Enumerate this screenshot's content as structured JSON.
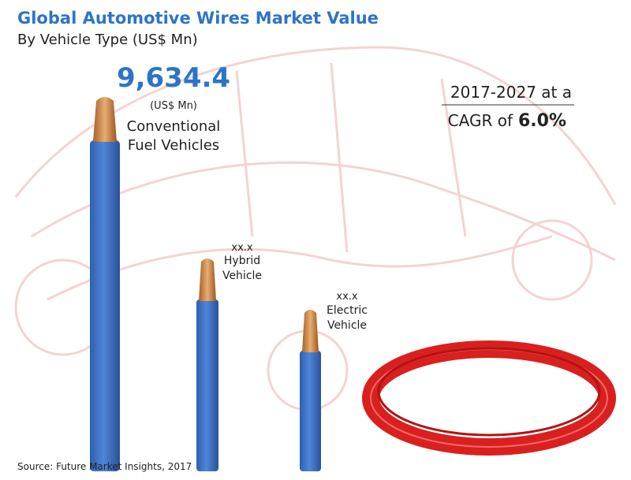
{
  "header": {
    "title": "Global Automotive Wires Market Value",
    "subtitle": "By Vehicle Type (US$ Mn)"
  },
  "items": [
    {
      "value": "9,634.4",
      "unit": "(US$ Mn)",
      "label": [
        "Conventional",
        "Fuel Vehicles"
      ]
    },
    {
      "value": "xx.x",
      "label": [
        "Hybrid",
        "Vehicle"
      ]
    },
    {
      "value": "xx.x",
      "label": [
        "Electric",
        "Vehicle"
      ]
    }
  ],
  "cagr": {
    "period": "2017-2027 at a",
    "prefix": "CAGR of",
    "rate": "6.0%"
  },
  "source": "Source: Future Market Insights, 2017"
}
